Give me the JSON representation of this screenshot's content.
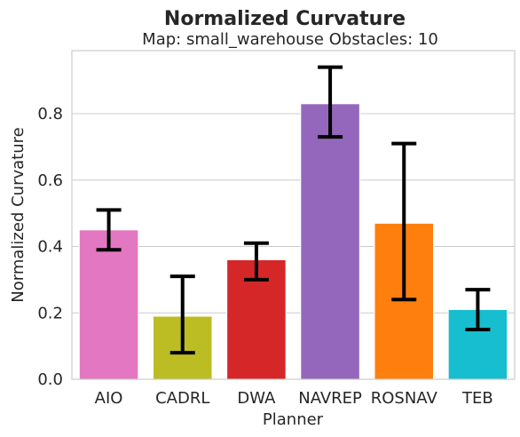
{
  "chart_data": {
    "type": "bar",
    "title": "Normalized Curvature",
    "subtitle": "Map: small_warehouse Obstacles: 10",
    "xlabel": "Planner",
    "ylabel": "Normalized Curvature",
    "categories": [
      "AIO",
      "CADRL",
      "DWA",
      "NAVREP",
      "ROSNAV",
      "TEB"
    ],
    "values": [
      0.45,
      0.19,
      0.36,
      0.83,
      0.47,
      0.21
    ],
    "error_low": [
      0.39,
      0.08,
      0.3,
      0.73,
      0.24,
      0.15
    ],
    "error_high": [
      0.51,
      0.31,
      0.41,
      0.94,
      0.71,
      0.27
    ],
    "colors": [
      "#e377c2",
      "#bcbd22",
      "#d62728",
      "#9467bd",
      "#ff7f0e",
      "#17becf"
    ],
    "ylim": [
      0,
      0.99
    ],
    "yticks": [
      0.0,
      0.2,
      0.4,
      0.6,
      0.8
    ],
    "ytick_labels": [
      "0.0",
      "0.2",
      "0.4",
      "0.6",
      "0.8"
    ],
    "grid": "horizontal"
  }
}
